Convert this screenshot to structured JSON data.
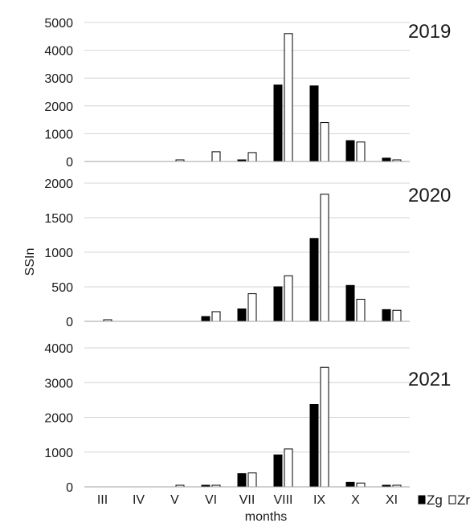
{
  "chart_data": {
    "type": "bar",
    "xlabel": "months",
    "ylabel": "SSIn",
    "categories": [
      "III",
      "IV",
      "V",
      "VI",
      "VII",
      "VIII",
      "IX",
      "X",
      "XI"
    ],
    "legend": {
      "position": "bottom-right",
      "items": [
        {
          "name": "Zg",
          "color": "#000000"
        },
        {
          "name": "Zr",
          "color": "#ffffff"
        }
      ]
    },
    "grid": true,
    "panels": [
      {
        "title": "2019",
        "ylim": [
          0,
          5000
        ],
        "yticks": [
          "0",
          "1000",
          "2000",
          "3000",
          "4000",
          "5000"
        ],
        "series": [
          {
            "name": "Zg",
            "values": [
              0,
              0,
              0,
              0,
              20,
              2750,
              2720,
              750,
              120
            ]
          },
          {
            "name": "Zr",
            "values": [
              0,
              0,
              20,
              350,
              320,
              4600,
              1400,
              700,
              30
            ]
          }
        ]
      },
      {
        "title": "2020",
        "ylim": [
          0,
          2000
        ],
        "yticks": [
          "0",
          "500",
          "1000",
          "1500",
          "2000"
        ],
        "series": [
          {
            "name": "Zg",
            "values": [
              0,
              0,
              0,
              70,
              180,
              500,
              1200,
              520,
              170
            ]
          },
          {
            "name": "Zr",
            "values": [
              5,
              0,
              0,
              140,
              400,
              660,
              1840,
              320,
              160
            ]
          }
        ]
      },
      {
        "title": "2021",
        "ylim": [
          0,
          4000
        ],
        "yticks": [
          "0",
          "1000",
          "2000",
          "3000",
          "4000"
        ],
        "series": [
          {
            "name": "Zg",
            "values": [
              0,
              0,
              0,
              10,
              380,
              920,
              2370,
              130,
              10
            ]
          },
          {
            "name": "Zr",
            "values": [
              0,
              0,
              10,
              30,
              400,
              1090,
              3440,
              110,
              10
            ]
          }
        ]
      }
    ]
  }
}
